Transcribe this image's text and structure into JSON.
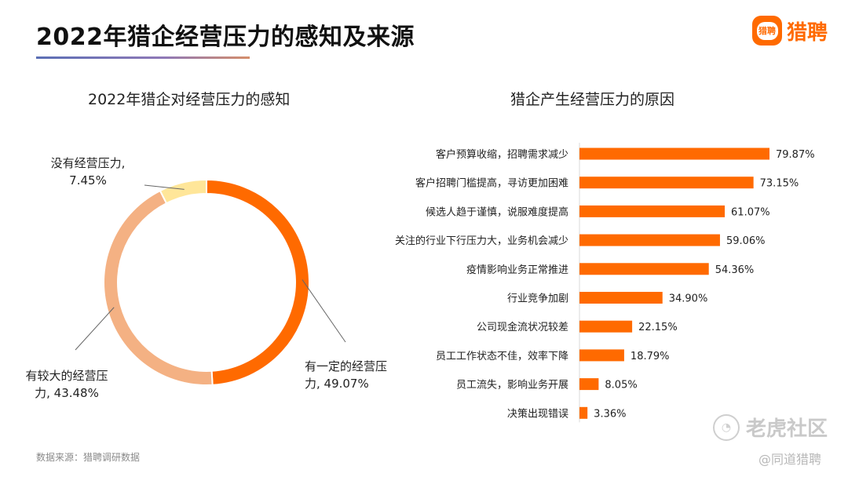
{
  "header": {
    "title": "2022年猎企经营压力的感知及来源",
    "logo_mark": "猎聘",
    "logo_text": "猎聘"
  },
  "colors": {
    "orange": "#ff6a00",
    "peach": "#f4b183",
    "yellow": "#ffe699",
    "leader": "#666666"
  },
  "footer": {
    "source": "数据来源：猎聘调研数据",
    "watermark": "老虎社区",
    "watermark_sub": "@同道猎聘"
  },
  "chart_data": [
    {
      "type": "pie",
      "variant": "donut",
      "title": "2022年猎企对经营压力的感知",
      "slices": [
        {
          "label": "有一定的经营压力",
          "value": 49.07,
          "value_text": "49.07%",
          "label_lines": [
            "有一定的经营压",
            "力, 49.07%"
          ]
        },
        {
          "label": "有较大的经营压力",
          "value": 43.48,
          "value_text": "43.48%",
          "label_lines": [
            "有较大的经营压",
            "力, 43.48%"
          ]
        },
        {
          "label": "没有经营压力",
          "value": 7.45,
          "value_text": "7.45%",
          "label_lines": [
            "没有经营压力,",
            "7.45%"
          ]
        }
      ]
    },
    {
      "type": "bar",
      "orientation": "horizontal",
      "title": "猎企产生经营压力的原因",
      "xlim": [
        0,
        100
      ],
      "categories": [
        "客户预算收缩，招聘需求减少",
        "客户招聘门槛提高，寻访更加困难",
        "候选人趋于谨慎，说服难度提高",
        "关注的行业下行压力大，业务机会减少",
        "疫情影响业务正常推进",
        "行业竞争加剧",
        "公司现金流状况较差",
        "员工工作状态不佳，效率下降",
        "员工流失，影响业务开展",
        "决策出现错误"
      ],
      "values": [
        79.87,
        73.15,
        61.07,
        59.06,
        54.36,
        34.9,
        22.15,
        18.79,
        8.05,
        3.36
      ],
      "value_labels": [
        "79.87%",
        "73.15%",
        "61.07%",
        "59.06%",
        "54.36%",
        "34.90%",
        "22.15%",
        "18.79%",
        "8.05%",
        "3.36%"
      ]
    }
  ]
}
